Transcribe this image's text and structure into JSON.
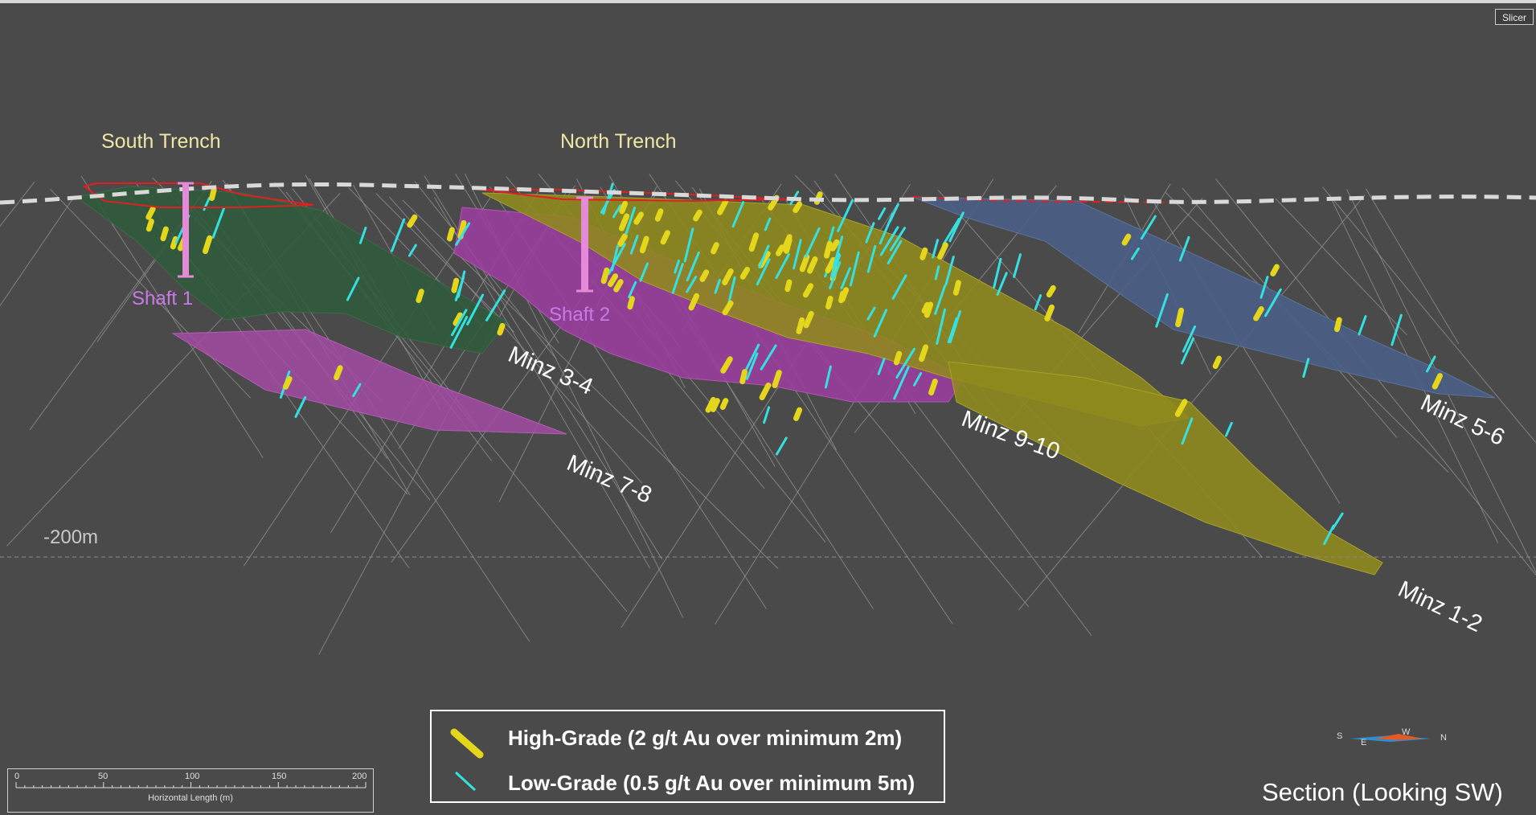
{
  "toolbar": {
    "slicer_label": "Slicer"
  },
  "labels": {
    "south_trench": "South Trench",
    "north_trench": "North Trench",
    "shaft_1": "Shaft 1",
    "shaft_2": "Shaft 2",
    "depth_line": "-200m",
    "section_caption": "Section (Looking SW)"
  },
  "zones": [
    {
      "name": "Minz 3-4",
      "color": "#2f5a3c"
    },
    {
      "name": "Minz 7-8",
      "color": "#a64aa6"
    },
    {
      "name": "Minz 9-10",
      "color": "#8f8a1c"
    },
    {
      "name": "Minz 5-6",
      "color": "#4a5f86"
    },
    {
      "name": "Minz 1-2",
      "color": "#8f8a1c"
    }
  ],
  "legend": {
    "high_grade": "High-Grade (2 g/t Au over minimum 2m)",
    "low_grade": "Low-Grade (0.5 g/t Au over minimum 5m)",
    "high_grade_color": "#e3d61b",
    "low_grade_color": "#35e0e0"
  },
  "scale_bar": {
    "ticks": [
      "0",
      "50",
      "100",
      "150",
      "200"
    ],
    "title": "Horizontal Length (m)"
  },
  "compass": {
    "s": "S",
    "e": "E",
    "w": "W",
    "n": "N"
  },
  "colors": {
    "background": "#4a4a4a",
    "topography": "#d9d9d9",
    "trench_outline": "#e02020",
    "shaft": "#e58ad8",
    "drillhole": "#9a9a9a"
  }
}
